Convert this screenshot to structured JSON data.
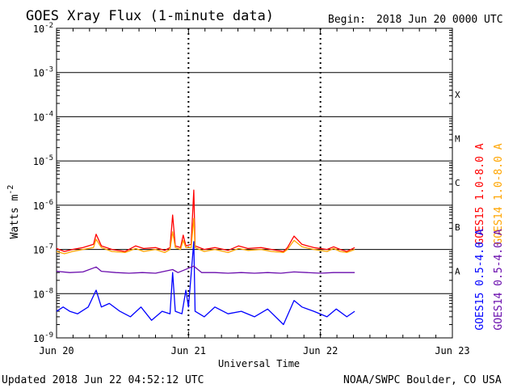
{
  "chart_data": {
    "type": "line",
    "title": "GOES Xray Flux (1-minute data)",
    "begin_label": "Begin:",
    "begin_value": "2018 Jun 20 0000 UTC",
    "xlabel": "Universal Time",
    "ylabel": "Watts m",
    "ylabel_superscript": "-2",
    "y_scale": "log",
    "ylim": [
      1e-09,
      0.01
    ],
    "y_ticks": [
      {
        "base": "10",
        "exp": "-2",
        "value": 0.01
      },
      {
        "base": "10",
        "exp": "-3",
        "value": 0.001
      },
      {
        "base": "10",
        "exp": "-4",
        "value": 0.0001
      },
      {
        "base": "10",
        "exp": "-5",
        "value": 1e-05
      },
      {
        "base": "10",
        "exp": "-6",
        "value": 1e-06
      },
      {
        "base": "10",
        "exp": "-7",
        "value": 1e-07
      },
      {
        "base": "10",
        "exp": "-8",
        "value": 1e-08
      },
      {
        "base": "10",
        "exp": "-9",
        "value": 1e-09
      }
    ],
    "x_unit": "days since 2018 Jun 20 0000 UTC",
    "xlim": [
      0,
      3
    ],
    "x_ticks": [
      {
        "label": "Jun 20",
        "value": 0
      },
      {
        "label": "Jun 21",
        "value": 1
      },
      {
        "label": "Jun 22",
        "value": 2
      },
      {
        "label": "Jun 23",
        "value": 3
      }
    ],
    "flare_classes": [
      {
        "label": "X",
        "value": 0.00032
      },
      {
        "label": "M",
        "value": 3.2e-05
      },
      {
        "label": "C",
        "value": 3.2e-06
      },
      {
        "label": "B",
        "value": 3.2e-07
      },
      {
        "label": "A",
        "value": 3.2e-08
      }
    ],
    "grid": "horizontal lines at each decade",
    "legend": "right side, vertical text",
    "series": [
      {
        "name": "GOES15 1.0-8.0 A",
        "color": "#ff0000",
        "channel": "long",
        "points": [
          [
            0,
            1.05e-07
          ],
          [
            0.06,
            9e-08
          ],
          [
            0.12,
            1e-07
          ],
          [
            0.2,
            1.1e-07
          ],
          [
            0.28,
            1.3e-07
          ],
          [
            0.3,
            2.2e-07
          ],
          [
            0.34,
            1.2e-07
          ],
          [
            0.42,
            1e-07
          ],
          [
            0.52,
            9e-08
          ],
          [
            0.6,
            1.2e-07
          ],
          [
            0.66,
            1.05e-07
          ],
          [
            0.75,
            1.1e-07
          ],
          [
            0.82,
            9.5e-08
          ],
          [
            0.86,
            1.1e-07
          ],
          [
            0.88,
            6e-07
          ],
          [
            0.9,
            1.2e-07
          ],
          [
            0.94,
            1.1e-07
          ],
          [
            0.96,
            2.1e-07
          ],
          [
            0.98,
            1.2e-07
          ],
          [
            1.02,
            1.3e-07
          ],
          [
            1.04,
            2.2e-06
          ],
          [
            1.05,
            1.2e-07
          ],
          [
            1.12,
            1e-07
          ],
          [
            1.2,
            1.1e-07
          ],
          [
            1.3,
            9.5e-08
          ],
          [
            1.38,
            1.2e-07
          ],
          [
            1.45,
            1.05e-07
          ],
          [
            1.55,
            1.1e-07
          ],
          [
            1.63,
            1e-07
          ],
          [
            1.72,
            9e-08
          ],
          [
            1.75,
            1.1e-07
          ],
          [
            1.8,
            2e-07
          ],
          [
            1.86,
            1.3e-07
          ],
          [
            1.95,
            1.1e-07
          ],
          [
            2.05,
            1e-07
          ],
          [
            2.1,
            1.15e-07
          ],
          [
            2.15,
            1e-07
          ],
          [
            2.2,
            9e-08
          ],
          [
            2.26,
            1.1e-07
          ]
        ]
      },
      {
        "name": "GOES14 1.0-8.0 A",
        "color": "#ffa500",
        "channel": "long",
        "points": [
          [
            0,
            9e-08
          ],
          [
            0.06,
            8e-08
          ],
          [
            0.12,
            9e-08
          ],
          [
            0.2,
            1e-07
          ],
          [
            0.28,
            1.1e-07
          ],
          [
            0.3,
            1.7e-07
          ],
          [
            0.34,
            1.1e-07
          ],
          [
            0.42,
            9e-08
          ],
          [
            0.52,
            8.5e-08
          ],
          [
            0.6,
            1.05e-07
          ],
          [
            0.66,
            9e-08
          ],
          [
            0.75,
            1e-07
          ],
          [
            0.82,
            8.5e-08
          ],
          [
            0.86,
            1e-07
          ],
          [
            0.88,
            2.5e-07
          ],
          [
            0.9,
            1.1e-07
          ],
          [
            0.94,
            1e-07
          ],
          [
            0.96,
            1.6e-07
          ],
          [
            0.98,
            1.1e-07
          ],
          [
            1.02,
            1.1e-07
          ],
          [
            1.04,
            5e-07
          ],
          [
            1.05,
            1.1e-07
          ],
          [
            1.12,
            9e-08
          ],
          [
            1.2,
            1e-07
          ],
          [
            1.3,
            8.5e-08
          ],
          [
            1.38,
            1.05e-07
          ],
          [
            1.45,
            9.5e-08
          ],
          [
            1.55,
            1e-07
          ],
          [
            1.63,
            9e-08
          ],
          [
            1.72,
            8.5e-08
          ],
          [
            1.75,
            1e-07
          ],
          [
            1.8,
            1.6e-07
          ],
          [
            1.86,
            1.15e-07
          ],
          [
            1.95,
            1e-07
          ],
          [
            2.05,
            9e-08
          ],
          [
            2.1,
            1.05e-07
          ],
          [
            2.15,
            9e-08
          ],
          [
            2.2,
            8.5e-08
          ],
          [
            2.26,
            1e-07
          ]
        ]
      },
      {
        "name": "GOES15 0.5-4.0 A",
        "color": "#0000ff",
        "channel": "short",
        "points": [
          [
            0,
            4e-09
          ],
          [
            0.05,
            5e-09
          ],
          [
            0.1,
            4e-09
          ],
          [
            0.16,
            3.5e-09
          ],
          [
            0.24,
            5e-09
          ],
          [
            0.3,
            1.2e-08
          ],
          [
            0.34,
            5e-09
          ],
          [
            0.4,
            6e-09
          ],
          [
            0.48,
            4e-09
          ],
          [
            0.56,
            3e-09
          ],
          [
            0.64,
            5e-09
          ],
          [
            0.72,
            2.5e-09
          ],
          [
            0.8,
            4e-09
          ],
          [
            0.86,
            3.5e-09
          ],
          [
            0.88,
            3e-08
          ],
          [
            0.9,
            4e-09
          ],
          [
            0.95,
            3.5e-09
          ],
          [
            0.98,
            1.2e-08
          ],
          [
            1.0,
            5e-09
          ],
          [
            1.04,
            1.5e-07
          ],
          [
            1.05,
            4e-09
          ],
          [
            1.12,
            3e-09
          ],
          [
            1.2,
            5e-09
          ],
          [
            1.3,
            3.5e-09
          ],
          [
            1.4,
            4e-09
          ],
          [
            1.5,
            3e-09
          ],
          [
            1.6,
            4.5e-09
          ],
          [
            1.72,
            2e-09
          ],
          [
            1.8,
            7e-09
          ],
          [
            1.86,
            5e-09
          ],
          [
            1.95,
            4e-09
          ],
          [
            2.05,
            3e-09
          ],
          [
            2.12,
            4.5e-09
          ],
          [
            2.2,
            3e-09
          ],
          [
            2.26,
            4e-09
          ]
        ]
      },
      {
        "name": "GOES14 0.5-4.0 A",
        "color": "#6a0dad",
        "channel": "short",
        "points": [
          [
            0,
            3.2e-08
          ],
          [
            0.1,
            3e-08
          ],
          [
            0.2,
            3.1e-08
          ],
          [
            0.3,
            4e-08
          ],
          [
            0.34,
            3.2e-08
          ],
          [
            0.45,
            3e-08
          ],
          [
            0.55,
            2.9e-08
          ],
          [
            0.65,
            3e-08
          ],
          [
            0.75,
            2.9e-08
          ],
          [
            0.88,
            3.5e-08
          ],
          [
            0.92,
            3e-08
          ],
          [
            1.04,
            4.2e-08
          ],
          [
            1.1,
            3e-08
          ],
          [
            1.2,
            3e-08
          ],
          [
            1.3,
            2.9e-08
          ],
          [
            1.4,
            3e-08
          ],
          [
            1.5,
            2.9e-08
          ],
          [
            1.6,
            3e-08
          ],
          [
            1.7,
            2.9e-08
          ],
          [
            1.8,
            3.1e-08
          ],
          [
            1.9,
            3e-08
          ],
          [
            2.0,
            2.9e-08
          ],
          [
            2.1,
            3e-08
          ],
          [
            2.26,
            3e-08
          ]
        ]
      }
    ]
  },
  "footer": {
    "updated": "Updated 2018 Jun 22 04:52:12 UTC",
    "credit": "NOAA/SWPC Boulder, CO USA"
  }
}
